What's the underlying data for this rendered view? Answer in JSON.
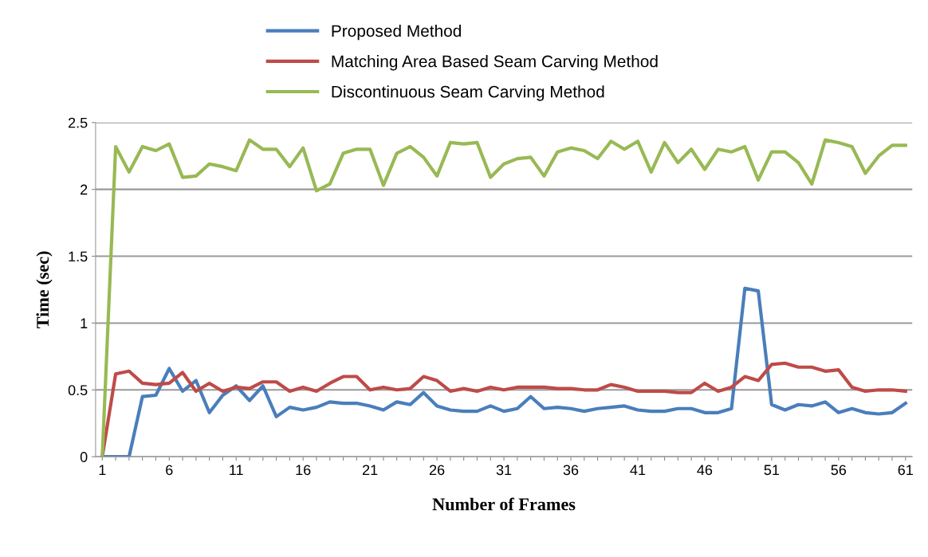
{
  "chart_data": {
    "type": "line",
    "xlabel": "Number of Frames",
    "ylabel": "Time (sec)",
    "x": [
      1,
      2,
      3,
      4,
      5,
      6,
      7,
      8,
      9,
      10,
      11,
      12,
      13,
      14,
      15,
      16,
      17,
      18,
      19,
      20,
      21,
      22,
      23,
      24,
      25,
      26,
      27,
      28,
      29,
      30,
      31,
      32,
      33,
      34,
      35,
      36,
      37,
      38,
      39,
      40,
      41,
      42,
      43,
      44,
      45,
      46,
      47,
      48,
      49,
      50,
      51,
      52,
      53,
      54,
      55,
      56,
      57,
      58,
      59,
      60,
      61
    ],
    "series": [
      {
        "name": "Proposed Method",
        "color": "#4a7ebb",
        "values": [
          0,
          0,
          0,
          0.45,
          0.46,
          0.66,
          0.49,
          0.57,
          0.33,
          0.46,
          0.53,
          0.42,
          0.53,
          0.3,
          0.37,
          0.35,
          0.37,
          0.41,
          0.4,
          0.4,
          0.38,
          0.35,
          0.41,
          0.39,
          0.48,
          0.38,
          0.35,
          0.34,
          0.34,
          0.38,
          0.34,
          0.36,
          0.45,
          0.36,
          0.37,
          0.36,
          0.34,
          0.36,
          0.37,
          0.38,
          0.35,
          0.34,
          0.34,
          0.36,
          0.36,
          0.33,
          0.33,
          0.36,
          1.26,
          1.24,
          0.39,
          0.35,
          0.39,
          0.38,
          0.41,
          0.33,
          0.36,
          0.33,
          0.32,
          0.33,
          0.4
        ]
      },
      {
        "name": "Matching Area Based Seam Carving Method",
        "color": "#be4b48",
        "values": [
          0,
          0.62,
          0.64,
          0.55,
          0.54,
          0.55,
          0.63,
          0.49,
          0.55,
          0.49,
          0.52,
          0.51,
          0.56,
          0.56,
          0.49,
          0.52,
          0.49,
          0.55,
          0.6,
          0.6,
          0.5,
          0.52,
          0.5,
          0.51,
          0.6,
          0.57,
          0.49,
          0.51,
          0.49,
          0.52,
          0.5,
          0.52,
          0.52,
          0.52,
          0.51,
          0.51,
          0.5,
          0.5,
          0.54,
          0.52,
          0.49,
          0.49,
          0.49,
          0.48,
          0.48,
          0.55,
          0.49,
          0.52,
          0.6,
          0.57,
          0.69,
          0.7,
          0.67,
          0.67,
          0.64,
          0.65,
          0.52,
          0.49,
          0.5,
          0.5,
          0.49
        ]
      },
      {
        "name": "Discontinuous Seam Carving Method",
        "color": "#98b954",
        "values": [
          0,
          2.32,
          2.13,
          2.32,
          2.29,
          2.34,
          2.09,
          2.1,
          2.19,
          2.17,
          2.14,
          2.37,
          2.3,
          2.3,
          2.17,
          2.31,
          1.99,
          2.04,
          2.27,
          2.3,
          2.3,
          2.03,
          2.27,
          2.32,
          2.24,
          2.1,
          2.35,
          2.34,
          2.35,
          2.09,
          2.19,
          2.23,
          2.24,
          2.1,
          2.28,
          2.31,
          2.29,
          2.23,
          2.36,
          2.3,
          2.36,
          2.13,
          2.35,
          2.2,
          2.3,
          2.15,
          2.3,
          2.28,
          2.32,
          2.07,
          2.28,
          2.28,
          2.2,
          2.04,
          2.37,
          2.35,
          2.32,
          2.12,
          2.25,
          2.33,
          2.33
        ]
      }
    ],
    "xlim": [
      0.5,
      61.5
    ],
    "xticks": [
      1,
      {
        "value": 2,
        "label": null
      },
      {
        "value": 3,
        "label": null
      },
      {
        "value": 4,
        "label": null
      },
      {
        "value": 5,
        "label": null
      },
      6,
      {
        "value": 7,
        "label": null
      },
      {
        "value": 8,
        "label": null
      },
      {
        "value": 9,
        "label": null
      },
      {
        "value": 10,
        "label": null
      },
      11,
      {
        "value": 12,
        "label": null
      },
      {
        "value": 13,
        "label": null
      },
      {
        "value": 14,
        "label": null
      },
      {
        "value": 15,
        "label": null
      },
      16,
      {
        "value": 17,
        "label": null
      },
      {
        "value": 18,
        "label": null
      },
      {
        "value": 19,
        "label": null
      },
      {
        "value": 20,
        "label": null
      },
      21,
      {
        "value": 22,
        "label": null
      },
      {
        "value": 23,
        "label": null
      },
      {
        "value": 24,
        "label": null
      },
      {
        "value": 25,
        "label": null
      },
      26,
      {
        "value": 27,
        "label": null
      },
      {
        "value": 28,
        "label": null
      },
      {
        "value": 29,
        "label": null
      },
      {
        "value": 30,
        "label": null
      },
      31,
      {
        "value": 32,
        "label": null
      },
      {
        "value": 33,
        "label": null
      },
      {
        "value": 34,
        "label": null
      },
      {
        "value": 35,
        "label": null
      },
      36,
      {
        "value": 37,
        "label": null
      },
      {
        "value": 38,
        "label": null
      },
      {
        "value": 39,
        "label": null
      },
      {
        "value": 40,
        "label": null
      },
      41,
      {
        "value": 42,
        "label": null
      },
      {
        "value": 43,
        "label": null
      },
      {
        "value": 44,
        "label": null
      },
      {
        "value": 45,
        "label": null
      },
      46,
      {
        "value": 47,
        "label": null
      },
      {
        "value": 48,
        "label": null
      },
      {
        "value": 49,
        "label": null
      },
      {
        "value": 50,
        "label": null
      },
      51,
      {
        "value": 52,
        "label": null
      },
      {
        "value": 53,
        "label": null
      },
      {
        "value": 54,
        "label": null
      },
      {
        "value": 55,
        "label": null
      },
      56,
      {
        "value": 57,
        "label": null
      },
      {
        "value": 58,
        "label": null
      },
      {
        "value": 59,
        "label": null
      },
      {
        "value": 60,
        "label": null
      },
      61
    ],
    "ylim": [
      0,
      2.5
    ],
    "yticks": [
      0,
      0.5,
      1,
      1.5,
      2,
      2.5
    ],
    "grid": "y",
    "legend": "top",
    "marker": "none",
    "line_style": "solid"
  }
}
